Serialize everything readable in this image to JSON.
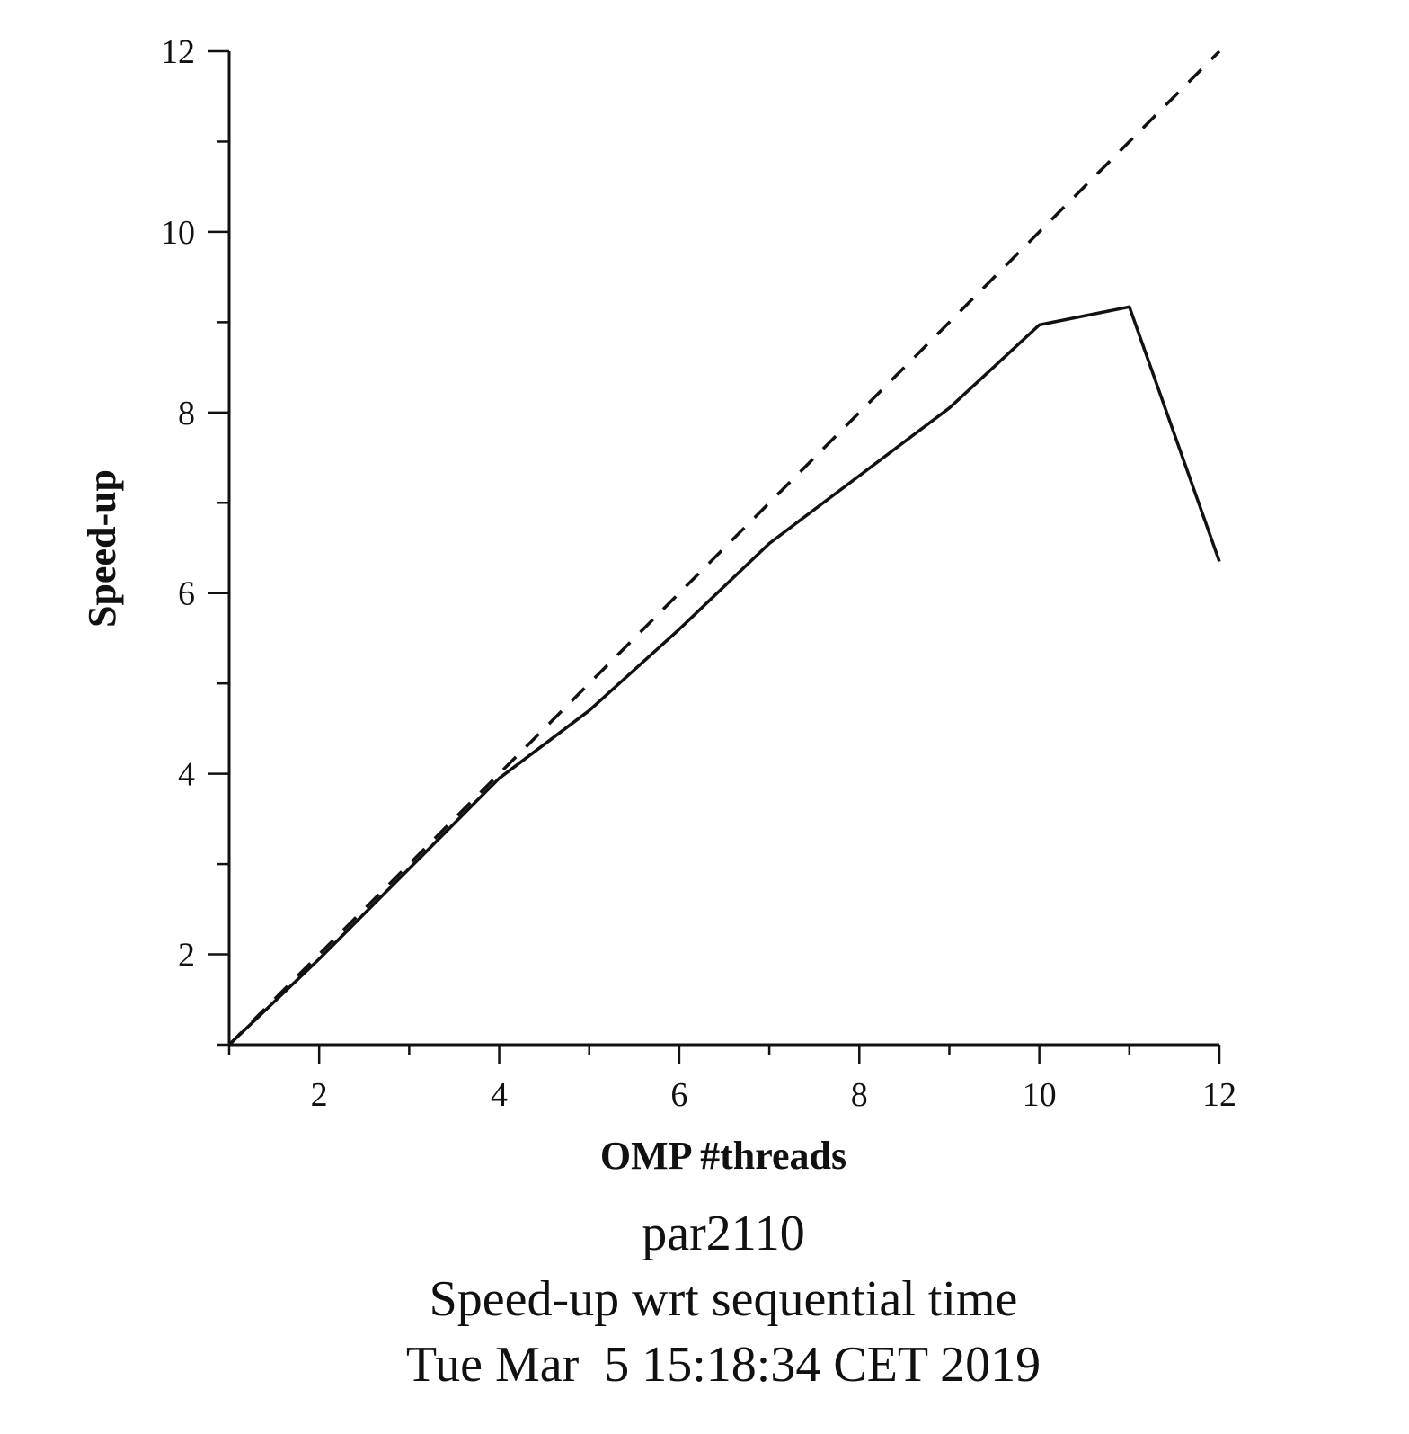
{
  "chart_data": {
    "type": "line",
    "xlabel": "OMP #threads",
    "ylabel": "Speed-up",
    "xlim": [
      1,
      12
    ],
    "ylim": [
      1,
      12
    ],
    "x_ticks": [
      2,
      4,
      6,
      8,
      10,
      12
    ],
    "y_ticks": [
      2,
      4,
      6,
      8,
      10,
      12
    ],
    "x_minor_step": 1,
    "y_minor_step": 1,
    "grid": false,
    "series": [
      {
        "style": "dashed",
        "color": "#111111",
        "x": [
          1,
          2,
          3,
          4,
          5,
          6,
          7,
          8,
          9,
          10,
          11,
          12
        ],
        "y": [
          1,
          2,
          3,
          4,
          5,
          6,
          7,
          8,
          9,
          10,
          11,
          12
        ]
      },
      {
        "style": "solid",
        "color": "#111111",
        "x": [
          1,
          2,
          3,
          4,
          5,
          6,
          7,
          8,
          9,
          10,
          11,
          12
        ],
        "y": [
          1,
          1.95,
          2.95,
          3.95,
          4.7,
          5.6,
          6.55,
          7.3,
          8.05,
          8.97,
          9.17,
          6.35
        ]
      }
    ],
    "captions": [
      "par2110",
      "Speed-up wrt sequential time",
      "Tue Mar  5 15:18:34 CET 2019"
    ]
  }
}
